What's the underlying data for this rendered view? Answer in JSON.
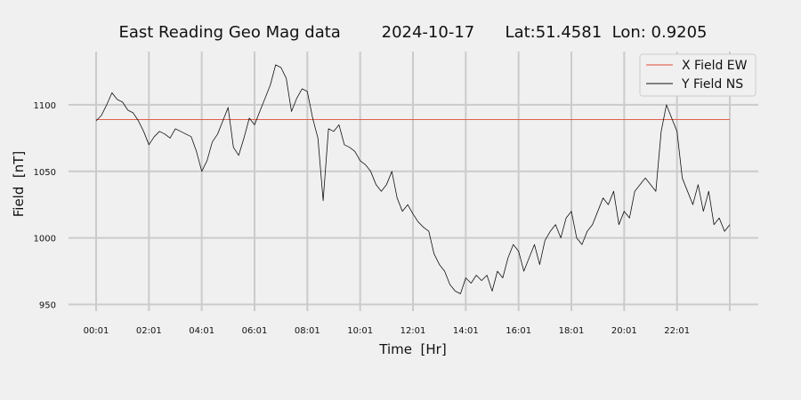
{
  "chart_data": {
    "type": "line",
    "title": "East Reading Geo Mag data        2024-10-17      Lat:51.4581  Lon: 0.9205",
    "xlabel": "Time  [Hr]",
    "ylabel": "Field  [nT]",
    "x_tick_labels": [
      "00:01",
      "02:01",
      "04:01",
      "06:01",
      "08:01",
      "10:01",
      "12:01",
      "14:01",
      "16:01",
      "18:01",
      "20:01",
      "22:01"
    ],
    "y_ticks": [
      950,
      1000,
      1050,
      1100
    ],
    "xlim_hours": [
      0,
      24
    ],
    "ylim": [
      945,
      1140
    ],
    "grid": true,
    "legend_position": "top-right",
    "series": [
      {
        "name": "X Field EW",
        "color": "#e24a33",
        "x_hours": [
          0,
          24
        ],
        "values": [
          1089,
          1089
        ]
      },
      {
        "name": "Y Field NS",
        "color": "#111111",
        "x_hours": [
          0.0,
          0.2,
          0.4,
          0.6,
          0.8,
          1.0,
          1.2,
          1.4,
          1.6,
          1.8,
          2.0,
          2.2,
          2.4,
          2.6,
          2.8,
          3.0,
          3.2,
          3.4,
          3.6,
          3.8,
          4.0,
          4.2,
          4.4,
          4.6,
          4.8,
          5.0,
          5.2,
          5.4,
          5.6,
          5.8,
          6.0,
          6.2,
          6.4,
          6.6,
          6.8,
          7.0,
          7.2,
          7.4,
          7.6,
          7.8,
          8.0,
          8.2,
          8.4,
          8.6,
          8.8,
          9.0,
          9.2,
          9.4,
          9.6,
          9.8,
          10.0,
          10.2,
          10.4,
          10.6,
          10.8,
          11.0,
          11.2,
          11.4,
          11.6,
          11.8,
          12.0,
          12.2,
          12.4,
          12.6,
          12.8,
          13.0,
          13.2,
          13.4,
          13.6,
          13.8,
          14.0,
          14.2,
          14.4,
          14.6,
          14.8,
          15.0,
          15.2,
          15.4,
          15.6,
          15.8,
          16.0,
          16.2,
          16.4,
          16.6,
          16.8,
          17.0,
          17.2,
          17.4,
          17.6,
          17.8,
          18.0,
          18.2,
          18.4,
          18.6,
          18.8,
          19.0,
          19.2,
          19.4,
          19.6,
          19.8,
          20.0,
          20.2,
          20.4,
          20.6,
          20.8,
          21.0,
          21.2,
          21.4,
          21.6,
          21.8,
          22.0,
          22.2,
          22.4,
          22.6,
          22.8,
          23.0,
          23.2,
          23.4,
          23.6,
          23.8,
          24.0
        ],
        "values": [
          1088,
          1092,
          1100,
          1109,
          1104,
          1102,
          1096,
          1094,
          1088,
          1080,
          1070,
          1076,
          1080,
          1078,
          1075,
          1082,
          1080,
          1078,
          1076,
          1065,
          1050,
          1058,
          1072,
          1078,
          1088,
          1098,
          1068,
          1062,
          1075,
          1090,
          1085,
          1095,
          1105,
          1115,
          1130,
          1128,
          1120,
          1095,
          1105,
          1112,
          1110,
          1090,
          1075,
          1028,
          1082,
          1080,
          1085,
          1070,
          1068,
          1065,
          1058,
          1055,
          1050,
          1040,
          1035,
          1040,
          1050,
          1030,
          1020,
          1025,
          1018,
          1012,
          1008,
          1005,
          988,
          980,
          975,
          965,
          960,
          958,
          970,
          966,
          972,
          968,
          972,
          960,
          975,
          970,
          985,
          995,
          990,
          975,
          985,
          995,
          980,
          998,
          1005,
          1010,
          1000,
          1015,
          1020,
          1000,
          995,
          1005,
          1010,
          1020,
          1030,
          1025,
          1035,
          1010,
          1020,
          1015,
          1035,
          1040,
          1045,
          1040,
          1035,
          1080,
          1100,
          1090,
          1080,
          1045,
          1035,
          1025,
          1040,
          1020,
          1035,
          1010,
          1015,
          1005,
          1010
        ]
      }
    ]
  }
}
